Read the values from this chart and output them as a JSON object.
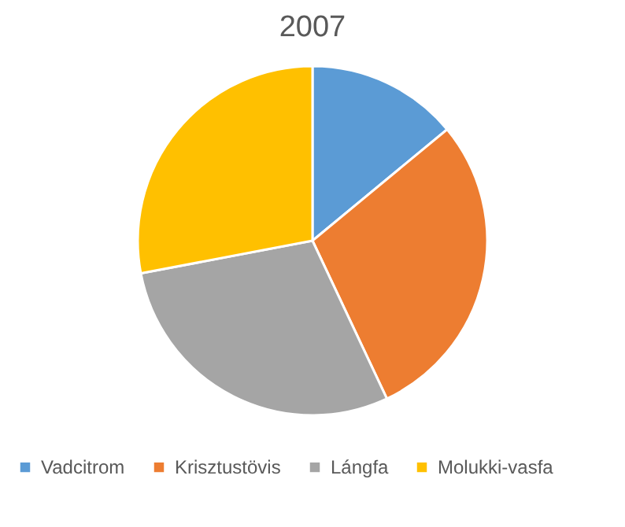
{
  "chart_data": {
    "type": "pie",
    "title": "2007",
    "categories": [
      "Vadcitrom",
      "Krisztustövis",
      "Lángfa",
      "Molukki-vasfa"
    ],
    "values": [
      14,
      29,
      29,
      28
    ],
    "colors": [
      "#5b9bd5",
      "#ed7d31",
      "#a5a5a5",
      "#ffc000"
    ],
    "legend": "bottom"
  }
}
